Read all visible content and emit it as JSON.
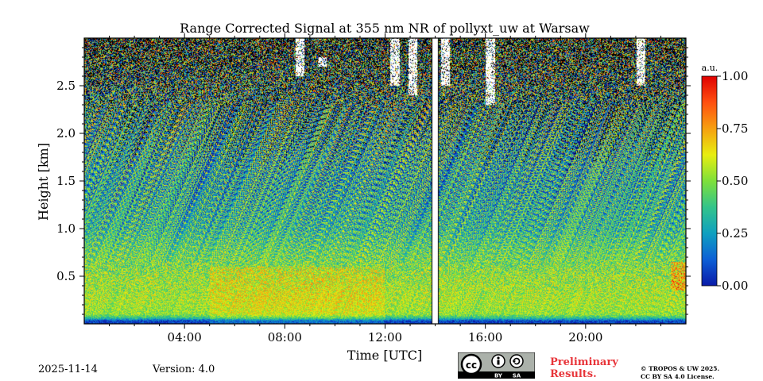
{
  "chart_data": {
    "type": "heatmap",
    "title": "Range Corrected Signal at 355 nm NR of pollyxt_uw at Warsaw",
    "xlabel": "Time [UTC]",
    "ylabel": "Height [km]",
    "xlim_hours": [
      0,
      24
    ],
    "ylim_km": [
      0,
      3.0
    ],
    "x_ticks": [
      {
        "value": 4,
        "label": "04:00"
      },
      {
        "value": 8,
        "label": "08:00"
      },
      {
        "value": 12,
        "label": "12:00"
      },
      {
        "value": 16,
        "label": "16:00"
      },
      {
        "value": 20,
        "label": "20:00"
      }
    ],
    "y_ticks": [
      {
        "value": 0.5,
        "label": "0.5"
      },
      {
        "value": 1.0,
        "label": "1.0"
      },
      {
        "value": 1.5,
        "label": "1.5"
      },
      {
        "value": 2.0,
        "label": "2.0"
      },
      {
        "value": 2.5,
        "label": "2.5"
      }
    ],
    "colorbar": {
      "unit": "a.u.",
      "range": [
        0,
        1
      ],
      "ticks": [
        {
          "value": 0.0,
          "label": "0.00"
        },
        {
          "value": 0.25,
          "label": "0.25"
        },
        {
          "value": 0.5,
          "label": "0.50"
        },
        {
          "value": 0.75,
          "label": "0.75"
        },
        {
          "value": 1.0,
          "label": "1.00"
        }
      ],
      "colors": [
        "#0a1aa8",
        "#0d5fd6",
        "#0fa0c0",
        "#33c48a",
        "#7ee03a",
        "#e8ee10",
        "#f6a010",
        "#ff5010",
        "#e00000"
      ]
    },
    "profile_km": [
      {
        "h": 0.0,
        "v": 0.05
      },
      {
        "h": 0.03,
        "v": 0.08
      },
      {
        "h": 0.06,
        "v": 0.35
      },
      {
        "h": 0.1,
        "v": 0.52
      },
      {
        "h": 0.25,
        "v": 0.55
      },
      {
        "h": 0.5,
        "v": 0.52
      },
      {
        "h": 0.75,
        "v": 0.45
      },
      {
        "h": 1.0,
        "v": 0.35
      },
      {
        "h": 1.5,
        "v": 0.3
      },
      {
        "h": 2.0,
        "v": 0.33
      },
      {
        "h": 2.5,
        "v": 0.38
      },
      {
        "h": 3.0,
        "v": 0.45
      }
    ],
    "cloud_columns": [
      {
        "t": 8.6,
        "h_start": 2.6,
        "h_end": 3.0
      },
      {
        "t": 9.5,
        "h_start": 2.7,
        "h_end": 2.8
      },
      {
        "t": 12.4,
        "h_start": 2.5,
        "h_end": 3.0
      },
      {
        "t": 13.1,
        "h_start": 2.4,
        "h_end": 3.0
      },
      {
        "t": 14.4,
        "h_start": 2.5,
        "h_end": 3.0
      },
      {
        "t": 16.2,
        "h_start": 2.3,
        "h_end": 3.0
      },
      {
        "t": 22.2,
        "h_start": 2.5,
        "h_end": 3.0
      }
    ],
    "missing_data_hours": [
      13.85,
      14.15
    ]
  },
  "footer": {
    "date": "2025-11-14",
    "version": "Version: 4.0",
    "preliminary_line1": "Preliminary",
    "preliminary_line2": "Results.",
    "copyright_line1": "© TROPOS & UW 2025.",
    "copyright_line2": "CC BY SA 4.0 License.",
    "license_badge": {
      "cc": "cc",
      "by": "BY",
      "sa": "SA"
    }
  }
}
